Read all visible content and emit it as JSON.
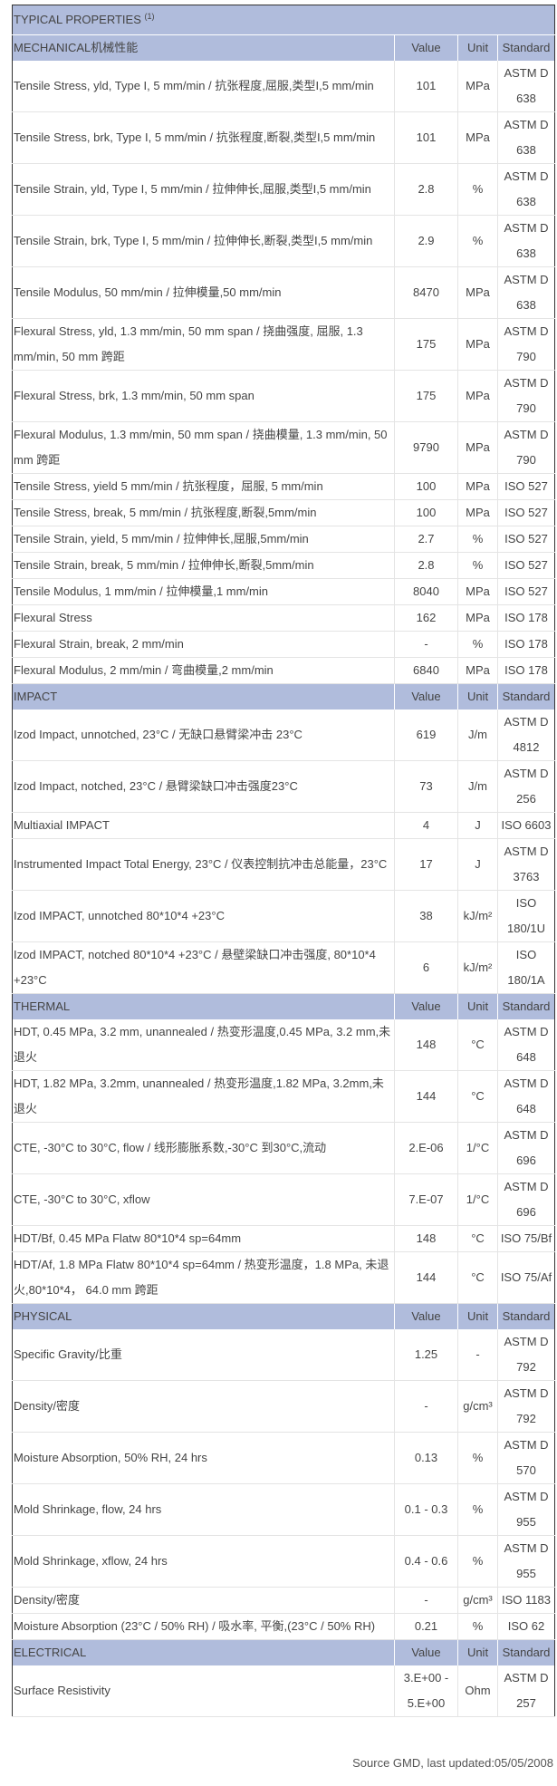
{
  "title": "TYPICAL PROPERTIES",
  "title_note": "(1)",
  "columns": {
    "value": "Value",
    "unit": "Unit",
    "standard": "Standard"
  },
  "header_color": "#b0bcdc",
  "sections": [
    {
      "name": "MECHANICAL机械性能",
      "rows": [
        [
          "Tensile Stress, yld, Type I, 5 mm/min / 抗张程度,屈服,类型I,5 mm/min",
          "101",
          "MPa",
          "ASTM D 638"
        ],
        [
          "Tensile Stress, brk, Type I, 5 mm/min / 抗张程度,断裂,类型I,5 mm/min",
          "101",
          "MPa",
          "ASTM D 638"
        ],
        [
          "Tensile Strain, yld, Type I, 5 mm/min / 拉伸伸长,屈服,类型I,5 mm/min",
          "2.8",
          "%",
          "ASTM D 638"
        ],
        [
          "Tensile Strain, brk, Type I, 5 mm/min / 拉伸伸长,断裂,类型I,5 mm/min",
          "2.9",
          "%",
          "ASTM D 638"
        ],
        [
          "Tensile Modulus, 50 mm/min / 拉伸模量,50 mm/min",
          "8470",
          "MPa",
          "ASTM D 638"
        ],
        [
          "Flexural Stress, yld, 1.3 mm/min, 50 mm span / 挠曲强度, 屈服, 1.3 mm/min, 50 mm 跨距",
          "175",
          "MPa",
          "ASTM D 790"
        ],
        [
          "Flexural Stress, brk, 1.3 mm/min, 50 mm span",
          "175",
          "MPa",
          "ASTM D 790"
        ],
        [
          "Flexural Modulus, 1.3 mm/min, 50 mm span / 挠曲模量, 1.3 mm/min, 50 mm 跨距",
          "9790",
          "MPa",
          "ASTM D 790"
        ],
        [
          "Tensile Stress, yield 5 mm/min / 抗张程度，屈服, 5 mm/min",
          "100",
          "MPa",
          "ISO 527"
        ],
        [
          "Tensile Stress, break, 5 mm/min / 抗张程度,断裂,5mm/min",
          "100",
          "MPa",
          "ISO 527"
        ],
        [
          "Tensile Strain, yield, 5 mm/min / 拉伸伸长,屈服,5mm/min",
          "2.7",
          "%",
          "ISO 527"
        ],
        [
          "Tensile Strain, break, 5 mm/min / 拉伸伸长,断裂,5mm/min",
          "2.8",
          "%",
          "ISO 527"
        ],
        [
          "Tensile Modulus, 1 mm/min / 拉伸模量,1 mm/min",
          "8040",
          "MPa",
          "ISO 527"
        ],
        [
          "Flexural Stress",
          "162",
          "MPa",
          "ISO 178"
        ],
        [
          "Flexural Strain, break, 2 mm/min",
          "-",
          "%",
          "ISO 178"
        ],
        [
          "Flexural Modulus, 2 mm/min / 弯曲模量,2 mm/min",
          "6840",
          "MPa",
          "ISO 178"
        ]
      ]
    },
    {
      "name": "IMPACT",
      "rows": [
        [
          "Izod Impact, unnotched, 23°C / 无缺口悬臂梁冲击 23°C",
          "619",
          "J/m",
          "ASTM D 4812"
        ],
        [
          "Izod Impact, notched, 23°C / 悬臂梁缺口冲击强度23°C",
          "73",
          "J/m",
          "ASTM D 256"
        ],
        [
          "Multiaxial IMPACT",
          "4",
          "J",
          "ISO 6603"
        ],
        [
          "Instrumented Impact Total Energy, 23°C / 仪表控制抗冲击总能量，23°C",
          "17",
          "J",
          "ASTM D 3763"
        ],
        [
          "Izod IMPACT, unnotched 80*10*4 +23°C",
          "38",
          "kJ/m²",
          "ISO 180/1U"
        ],
        [
          "Izod IMPACT, notched 80*10*4 +23°C / 悬壁梁缺口冲击强度, 80*10*4 +23°C",
          "6",
          "kJ/m²",
          "ISO 180/1A"
        ]
      ]
    },
    {
      "name": "THERMAL",
      "rows": [
        [
          "HDT, 0.45 MPa, 3.2 mm, unannealed / 热变形温度,0.45 MPa, 3.2 mm,未退火",
          "148",
          "°C",
          "ASTM D 648"
        ],
        [
          "HDT, 1.82 MPa, 3.2mm, unannealed / 热变形温度,1.82 MPa, 3.2mm,未退火",
          "144",
          "°C",
          "ASTM D 648"
        ],
        [
          "CTE, -30°C to 30°C, flow / 线形膨胀系数,-30°C 到30°C,流动",
          "2.E-06",
          "1/°C",
          "ASTM D 696"
        ],
        [
          "CTE, -30°C to 30°C, xflow",
          "7.E-07",
          "1/°C",
          "ASTM D 696"
        ],
        [
          "HDT/Bf, 0.45 MPa Flatw 80*10*4 sp=64mm",
          "148",
          "°C",
          "ISO 75/Bf"
        ],
        [
          "HDT/Af, 1.8 MPa Flatw 80*10*4 sp=64mm / 热变形温度，1.8 MPa, 未退火,80*10*4， 64.0 mm 跨距",
          "144",
          "°C",
          "ISO 75/Af"
        ]
      ]
    },
    {
      "name": "PHYSICAL",
      "rows": [
        [
          "Specific Gravity/比重",
          "1.25",
          "-",
          "ASTM D 792"
        ],
        [
          "Density/密度",
          "-",
          "g/cm³",
          "ASTM D 792"
        ],
        [
          "Moisture Absorption, 50% RH, 24 hrs",
          "0.13",
          "%",
          "ASTM D 570"
        ],
        [
          "Mold Shrinkage, flow, 24 hrs",
          "0.1 - 0.3",
          "%",
          "ASTM D 955"
        ],
        [
          "Mold Shrinkage, xflow, 24 hrs",
          "0.4 - 0.6",
          "%",
          "ASTM D 955"
        ],
        [
          "Density/密度",
          "-",
          "g/cm³",
          "ISO 1183"
        ],
        [
          "Moisture Absorption (23°C / 50% RH) / 吸水率, 平衡,(23°C / 50% RH)",
          "0.21",
          "%",
          "ISO 62"
        ]
      ]
    },
    {
      "name": "ELECTRICAL",
      "rows": [
        [
          "Surface Resistivity",
          "3.E+00 - 5.E+00",
          "Ohm",
          "ASTM D 257"
        ]
      ]
    }
  ],
  "footer": "Source GMD, last updated:05/05/2008"
}
